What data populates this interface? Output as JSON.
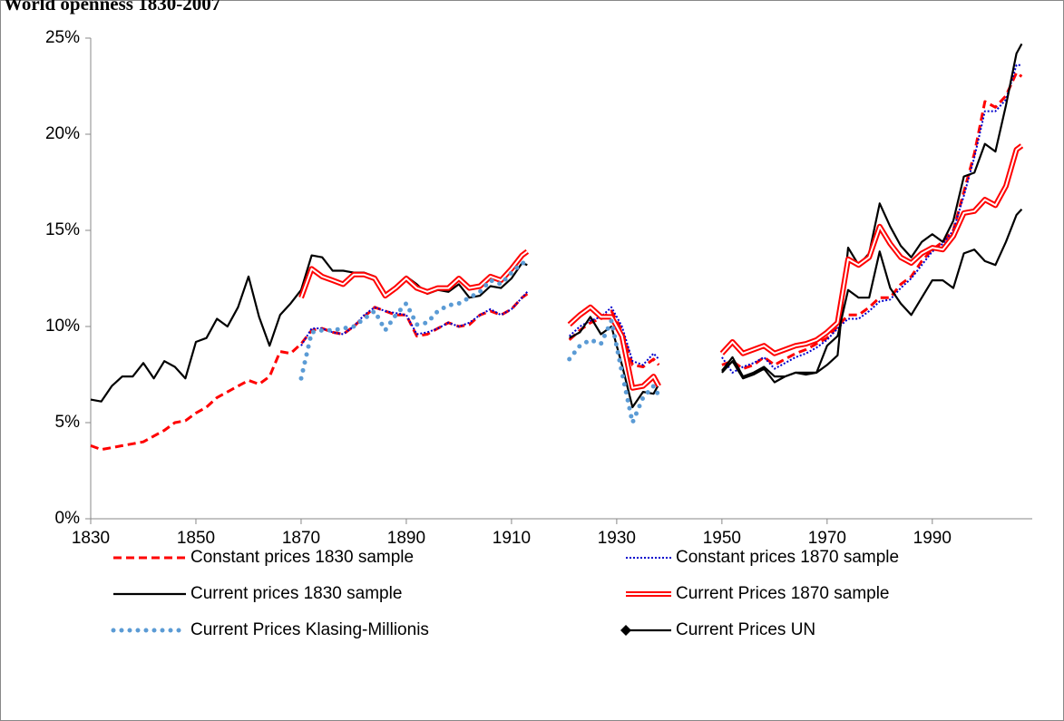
{
  "chart_data": {
    "type": "line",
    "title": "World openness 1830-2007",
    "x": [
      1830,
      1832,
      1834,
      1836,
      1838,
      1840,
      1842,
      1844,
      1846,
      1848,
      1850,
      1852,
      1854,
      1856,
      1858,
      1860,
      1862,
      1864,
      1866,
      1868,
      1870,
      1872,
      1874,
      1876,
      1878,
      1880,
      1882,
      1884,
      1886,
      1888,
      1890,
      1892,
      1894,
      1896,
      1898,
      1900,
      1902,
      1904,
      1906,
      1908,
      1910,
      1912,
      1913,
      1917,
      1921,
      1923,
      1925,
      1927,
      1929,
      1931,
      1933,
      1935,
      1937,
      1938,
      1944,
      1950,
      1952,
      1954,
      1956,
      1958,
      1960,
      1962,
      1964,
      1966,
      1968,
      1970,
      1972,
      1974,
      1976,
      1978,
      1980,
      1982,
      1984,
      1986,
      1988,
      1990,
      1992,
      1994,
      1996,
      1998,
      2000,
      2002,
      2004,
      2006,
      2007
    ],
    "xlim": [
      1830,
      2009
    ],
    "xticks": [
      1830,
      1850,
      1870,
      1890,
      1910,
      1930,
      1950,
      1970,
      1990
    ],
    "ylim": [
      0,
      25
    ],
    "yticks": [
      {
        "value": 0,
        "label": "0%"
      },
      {
        "value": 5,
        "label": "5%"
      },
      {
        "value": 10,
        "label": "10%"
      },
      {
        "value": 15,
        "label": "15%"
      },
      {
        "value": 20,
        "label": "20%"
      },
      {
        "value": 25,
        "label": "25%"
      }
    ],
    "series": [
      {
        "name": "Constant prices 1830 sample",
        "color": "#ff0000",
        "style": "dashed",
        "values": [
          3.8,
          3.6,
          3.7,
          3.8,
          3.9,
          4.0,
          4.3,
          4.6,
          5.0,
          5.1,
          5.5,
          5.8,
          6.3,
          6.6,
          6.9,
          7.2,
          7.0,
          7.4,
          8.7,
          8.6,
          9.1,
          9.8,
          9.9,
          9.7,
          9.6,
          10.0,
          10.5,
          11.0,
          10.8,
          10.6,
          10.6,
          9.5,
          9.6,
          9.9,
          10.2,
          10.0,
          10.1,
          10.6,
          10.8,
          10.6,
          10.9,
          11.5,
          11.7,
          null,
          9.3,
          9.8,
          10.2,
          10.4,
          10.8,
          9.8,
          8.0,
          7.9,
          8.3,
          8.0,
          null,
          8.0,
          8.2,
          7.8,
          8.0,
          8.4,
          8.0,
          8.3,
          8.6,
          8.8,
          9.1,
          9.4,
          10.0,
          10.6,
          10.6,
          11.0,
          11.5,
          11.5,
          12.2,
          12.6,
          13.4,
          14.0,
          14.4,
          15.0,
          17.0,
          19.0,
          21.7,
          21.4,
          22.0,
          23.2,
          23.0
        ]
      },
      {
        "name": "Constant prices  1870 sample",
        "color": "#0000cc",
        "style": "dotted",
        "values": [
          null,
          null,
          null,
          null,
          null,
          null,
          null,
          null,
          null,
          null,
          null,
          null,
          null,
          null,
          null,
          null,
          null,
          null,
          null,
          null,
          9.0,
          9.9,
          9.9,
          9.7,
          9.6,
          10.0,
          10.6,
          11.0,
          10.8,
          10.7,
          10.6,
          9.6,
          9.7,
          9.9,
          10.2,
          10.0,
          10.2,
          10.6,
          10.9,
          10.6,
          10.9,
          11.5,
          11.8,
          null,
          9.5,
          10.0,
          10.3,
          10.5,
          11.0,
          10.0,
          8.2,
          8.0,
          8.6,
          8.3,
          null,
          8.4,
          7.6,
          7.9,
          8.1,
          8.4,
          7.8,
          8.1,
          8.4,
          8.6,
          8.9,
          9.3,
          9.9,
          10.4,
          10.4,
          10.8,
          11.3,
          11.4,
          12.0,
          12.5,
          13.2,
          13.9,
          14.3,
          15.0,
          16.8,
          18.8,
          21.2,
          21.2,
          21.8,
          23.6,
          23.6
        ]
      },
      {
        "name": "Current prices 1830 sample",
        "color": "#000000",
        "style": "solid",
        "values": [
          6.2,
          6.1,
          6.9,
          7.4,
          7.4,
          8.1,
          7.3,
          8.2,
          7.9,
          7.3,
          9.2,
          9.4,
          10.4,
          10.0,
          11.0,
          12.6,
          10.5,
          9.0,
          10.6,
          11.2,
          11.9,
          13.7,
          13.6,
          12.9,
          12.9,
          12.8,
          12.8,
          12.6,
          11.7,
          12.1,
          12.6,
          12.2,
          11.7,
          11.9,
          11.8,
          12.2,
          11.5,
          11.6,
          12.1,
          12.0,
          12.5,
          13.3,
          13.2,
          null,
          9.4,
          9.7,
          10.5,
          9.6,
          10.0,
          8.0,
          5.8,
          6.6,
          6.5,
          7.0,
          null,
          7.7,
          8.4,
          7.4,
          7.6,
          7.9,
          7.4,
          7.4,
          7.6,
          7.6,
          7.6,
          8.0,
          8.5,
          14.1,
          13.2,
          13.8,
          16.4,
          15.2,
          14.2,
          13.6,
          14.4,
          14.8,
          14.4,
          15.5,
          17.8,
          18.0,
          19.5,
          19.1,
          21.5,
          24.2,
          24.7
        ]
      },
      {
        "name": "Current Prices 1870 sample",
        "color": "#ff0000",
        "style": "double",
        "values": [
          null,
          null,
          null,
          null,
          null,
          null,
          null,
          null,
          null,
          null,
          null,
          null,
          null,
          null,
          null,
          null,
          null,
          null,
          null,
          null,
          11.5,
          13.0,
          12.6,
          12.4,
          12.2,
          12.7,
          12.7,
          12.5,
          11.6,
          12.0,
          12.5,
          12.0,
          11.8,
          12.0,
          12.0,
          12.5,
          12.0,
          12.1,
          12.6,
          12.4,
          13.0,
          13.7,
          13.9,
          null,
          10.1,
          10.6,
          11.0,
          10.5,
          10.5,
          9.5,
          6.8,
          6.9,
          7.4,
          6.9,
          null,
          8.6,
          9.2,
          8.6,
          8.8,
          9.0,
          8.6,
          8.8,
          9.0,
          9.1,
          9.3,
          9.7,
          10.2,
          13.5,
          13.2,
          13.6,
          15.2,
          14.3,
          13.6,
          13.3,
          13.8,
          14.1,
          14.0,
          14.7,
          15.9,
          16.0,
          16.6,
          16.3,
          17.3,
          19.2,
          19.4
        ]
      },
      {
        "name": "Current Prices Klasing-Millionis",
        "color": "#5b9bd5",
        "style": "dots",
        "values": [
          null,
          null,
          null,
          null,
          null,
          null,
          null,
          null,
          null,
          null,
          null,
          null,
          null,
          null,
          null,
          null,
          null,
          null,
          null,
          null,
          7.3,
          9.7,
          9.8,
          9.8,
          9.9,
          10.0,
          10.4,
          10.8,
          9.8,
          10.6,
          11.2,
          10.1,
          10.2,
          10.8,
          11.1,
          11.2,
          11.5,
          11.8,
          12.4,
          12.2,
          12.8,
          13.3,
          13.3,
          null,
          8.3,
          9.0,
          9.3,
          9.1,
          10.3,
          7.6,
          5.0,
          6.3,
          6.9,
          6.4,
          null,
          null,
          null,
          null,
          null,
          null,
          null,
          null,
          null,
          null,
          null,
          null,
          null,
          null,
          null,
          null,
          null,
          null,
          null,
          null,
          null,
          null,
          null,
          null,
          null,
          null,
          null,
          null,
          null,
          null,
          null
        ]
      },
      {
        "name": "Current Prices UN",
        "color": "#000000",
        "style": "solid-diamond",
        "values": [
          null,
          null,
          null,
          null,
          null,
          null,
          null,
          null,
          null,
          null,
          null,
          null,
          null,
          null,
          null,
          null,
          null,
          null,
          null,
          null,
          null,
          null,
          null,
          null,
          null,
          null,
          null,
          null,
          null,
          null,
          null,
          null,
          null,
          null,
          null,
          null,
          null,
          null,
          null,
          null,
          null,
          null,
          null,
          null,
          null,
          null,
          null,
          null,
          null,
          null,
          null,
          null,
          null,
          null,
          null,
          7.6,
          8.2,
          7.3,
          7.5,
          7.8,
          7.1,
          7.4,
          7.6,
          7.5,
          7.6,
          9.0,
          9.5,
          11.9,
          11.5,
          11.5,
          13.9,
          12.0,
          11.2,
          10.6,
          11.5,
          12.4,
          12.4,
          12.0,
          13.8,
          14.0,
          13.4,
          13.2,
          14.4,
          15.8,
          16.1
        ]
      }
    ]
  }
}
